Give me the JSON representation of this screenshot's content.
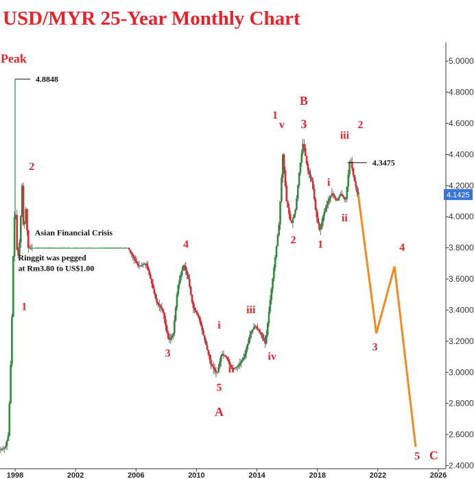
{
  "chart_data": {
    "type": "candlestick",
    "title": "USD/MYR 25-Year Monthly Chart",
    "xlabel": "",
    "ylabel": "",
    "xlim": [
      1997.0,
      2026.5
    ],
    "ylim": [
      2.38,
      5.12
    ],
    "y_ticks": [
      "2.4000",
      "2.6000",
      "2.8000",
      "3.0000",
      "3.2000",
      "3.4000",
      "3.6000",
      "3.8000",
      "4.0000",
      "4.2000",
      "4.4000",
      "4.6000",
      "4.8000",
      "5.0000"
    ],
    "x_ticks": [
      "1998",
      "2002",
      "2006",
      "2010",
      "2014",
      "2018",
      "2022",
      "2026"
    ],
    "grid": false,
    "up_color": "#2e8b3a",
    "down_color": "#e0262e",
    "projection_color": "#f28a1e",
    "price_path": [
      [
        1997.0,
        2.5
      ],
      [
        1997.4,
        2.52
      ],
      [
        1997.6,
        2.6
      ],
      [
        1997.8,
        3.2
      ],
      [
        1997.95,
        3.9
      ],
      [
        1998.05,
        4.1
      ],
      [
        1998.2,
        3.7
      ],
      [
        1998.35,
        3.85
      ],
      [
        1998.5,
        4.2
      ],
      [
        1998.6,
        3.9
      ],
      [
        1998.75,
        4.05
      ],
      [
        1998.9,
        3.8
      ],
      [
        1999.2,
        3.8
      ],
      [
        2002.0,
        3.8
      ],
      [
        2005.5,
        3.8
      ],
      [
        2005.8,
        3.75
      ],
      [
        2006.2,
        3.68
      ],
      [
        2006.7,
        3.7
      ],
      [
        2007.0,
        3.6
      ],
      [
        2007.4,
        3.45
      ],
      [
        2007.8,
        3.4
      ],
      [
        2008.2,
        3.2
      ],
      [
        2008.5,
        3.25
      ],
      [
        2008.8,
        3.55
      ],
      [
        2009.2,
        3.7
      ],
      [
        2009.5,
        3.6
      ],
      [
        2009.8,
        3.42
      ],
      [
        2010.2,
        3.35
      ],
      [
        2010.6,
        3.2
      ],
      [
        2011.0,
        3.05
      ],
      [
        2011.4,
        2.99
      ],
      [
        2011.7,
        3.12
      ],
      [
        2012.0,
        3.1
      ],
      [
        2012.4,
        3.02
      ],
      [
        2012.8,
        3.04
      ],
      [
        2013.2,
        3.1
      ],
      [
        2013.6,
        3.25
      ],
      [
        2013.9,
        3.3
      ],
      [
        2014.3,
        3.25
      ],
      [
        2014.6,
        3.18
      ],
      [
        2014.9,
        3.45
      ],
      [
        2015.2,
        3.7
      ],
      [
        2015.5,
        3.95
      ],
      [
        2015.75,
        4.4
      ],
      [
        2016.0,
        4.1
      ],
      [
        2016.3,
        3.95
      ],
      [
        2016.6,
        4.05
      ],
      [
        2016.85,
        4.3
      ],
      [
        2017.1,
        4.48
      ],
      [
        2017.4,
        4.3
      ],
      [
        2017.7,
        4.22
      ],
      [
        2017.95,
        4.02
      ],
      [
        2018.2,
        3.9
      ],
      [
        2018.45,
        4.02
      ],
      [
        2018.75,
        4.1
      ],
      [
        2019.0,
        4.15
      ],
      [
        2019.3,
        4.1
      ],
      [
        2019.6,
        4.15
      ],
      [
        2019.9,
        4.1
      ],
      [
        2020.2,
        4.38
      ],
      [
        2020.45,
        4.25
      ],
      [
        2020.7,
        4.1425
      ]
    ],
    "projection": [
      [
        2020.7,
        4.1425
      ],
      [
        2021.9,
        3.25
      ],
      [
        2023.1,
        3.68
      ],
      [
        2024.5,
        2.52
      ]
    ],
    "annotations": {
      "peak_value": "4.8848",
      "high_value": "4.3475",
      "last_price": "4.1425",
      "crisis": "Asian Financial Crisis",
      "peg_line1": "Ringgit was pegged",
      "peg_line2": "at Rm3.80 to US$1.00",
      "peak": "Peak"
    },
    "wave_labels": [
      {
        "text": "Peak",
        "x": 1997.9,
        "y": 4.99,
        "size": 18
      },
      {
        "text": "2",
        "x": 1999.1,
        "y": 4.3,
        "size": 16
      },
      {
        "text": "1",
        "x": 1998.6,
        "y": 3.4,
        "size": 16
      },
      {
        "text": "4",
        "x": 2009.3,
        "y": 3.8,
        "size": 16
      },
      {
        "text": "3",
        "x": 2008.1,
        "y": 3.1,
        "size": 16
      },
      {
        "text": "i",
        "x": 2011.5,
        "y": 3.28,
        "size": 16
      },
      {
        "text": "ii",
        "x": 2012.3,
        "y": 3.0,
        "size": 16
      },
      {
        "text": "5",
        "x": 2011.5,
        "y": 2.88,
        "size": 16
      },
      {
        "text": "A",
        "x": 2011.5,
        "y": 2.72,
        "size": 18
      },
      {
        "text": "iii",
        "x": 2013.6,
        "y": 3.38,
        "size": 16
      },
      {
        "text": "iv",
        "x": 2015.0,
        "y": 3.08,
        "size": 16
      },
      {
        "text": "1",
        "x": 2015.2,
        "y": 4.63,
        "size": 16
      },
      {
        "text": "v",
        "x": 2015.65,
        "y": 4.57,
        "size": 16
      },
      {
        "text": "B",
        "x": 2017.1,
        "y": 4.72,
        "size": 18
      },
      {
        "text": "3",
        "x": 2017.1,
        "y": 4.57,
        "size": 18
      },
      {
        "text": "2",
        "x": 2016.4,
        "y": 3.83,
        "size": 16
      },
      {
        "text": "1",
        "x": 2018.2,
        "y": 3.8,
        "size": 16
      },
      {
        "text": "i",
        "x": 2018.75,
        "y": 4.2,
        "size": 16
      },
      {
        "text": "iii",
        "x": 2019.8,
        "y": 4.5,
        "size": 16
      },
      {
        "text": "2",
        "x": 2020.85,
        "y": 4.57,
        "size": 16
      },
      {
        "text": "ii",
        "x": 2019.8,
        "y": 3.97,
        "size": 16
      },
      {
        "text": "3",
        "x": 2021.8,
        "y": 3.14,
        "size": 16
      },
      {
        "text": "4",
        "x": 2023.6,
        "y": 3.78,
        "size": 16
      },
      {
        "text": "5",
        "x": 2024.6,
        "y": 2.44,
        "size": 16
      },
      {
        "text": "C",
        "x": 2025.7,
        "y": 2.44,
        "size": 18
      }
    ]
  }
}
